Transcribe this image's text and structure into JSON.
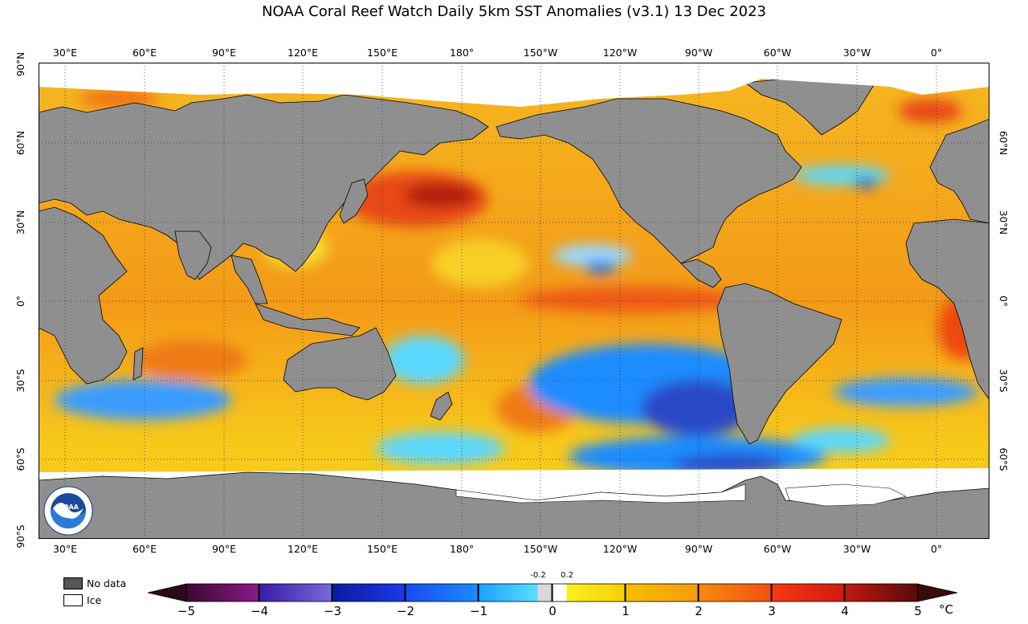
{
  "title": "NOAA Coral Reef Watch Daily 5km SST Anomalies  (v3.1)   13 Dec 2023",
  "lon_labels": [
    "30°E",
    "60°E",
    "90°E",
    "120°E",
    "150°E",
    "180°",
    "150°W",
    "120°W",
    "90°W",
    "60°W",
    "30°W",
    "0°"
  ],
  "lat_labels_left": [
    "90°N",
    "60°N",
    "30°N",
    "0°",
    "30°S",
    "60°S",
    "90°S"
  ],
  "lat_labels_right": [
    "60°N",
    "30°N",
    "0°",
    "30°S",
    "60°S"
  ],
  "legend": {
    "no_data": "No data",
    "ice": "Ice"
  },
  "colorbar": {
    "ticks": [
      "−5",
      "−4",
      "−3",
      "−2",
      "−1",
      "0",
      "1",
      "2",
      "3",
      "4",
      "5"
    ],
    "small_labels": [
      "-0.2",
      "0.2"
    ],
    "unit": "°C",
    "range": [
      -5,
      5
    ],
    "colors": {
      "m5": "#3a0a2a",
      "m4": "#7a1a7a",
      "m3": "#3a2ab0",
      "m2": "#0a2ac8",
      "m1": "#1a8cff",
      "m02": "#5ad8ff",
      "zero": "#d8d8d8",
      "p02": "#ffff30",
      "p1": "#f5c800",
      "p2": "#f59a10",
      "p3": "#f04a10",
      "p4": "#d01a10",
      "p5": "#5a0a0a"
    }
  },
  "map_colors": {
    "land": "#8f8f8f",
    "ice": "#ffffff",
    "ocean_base": "#f5b820"
  }
}
